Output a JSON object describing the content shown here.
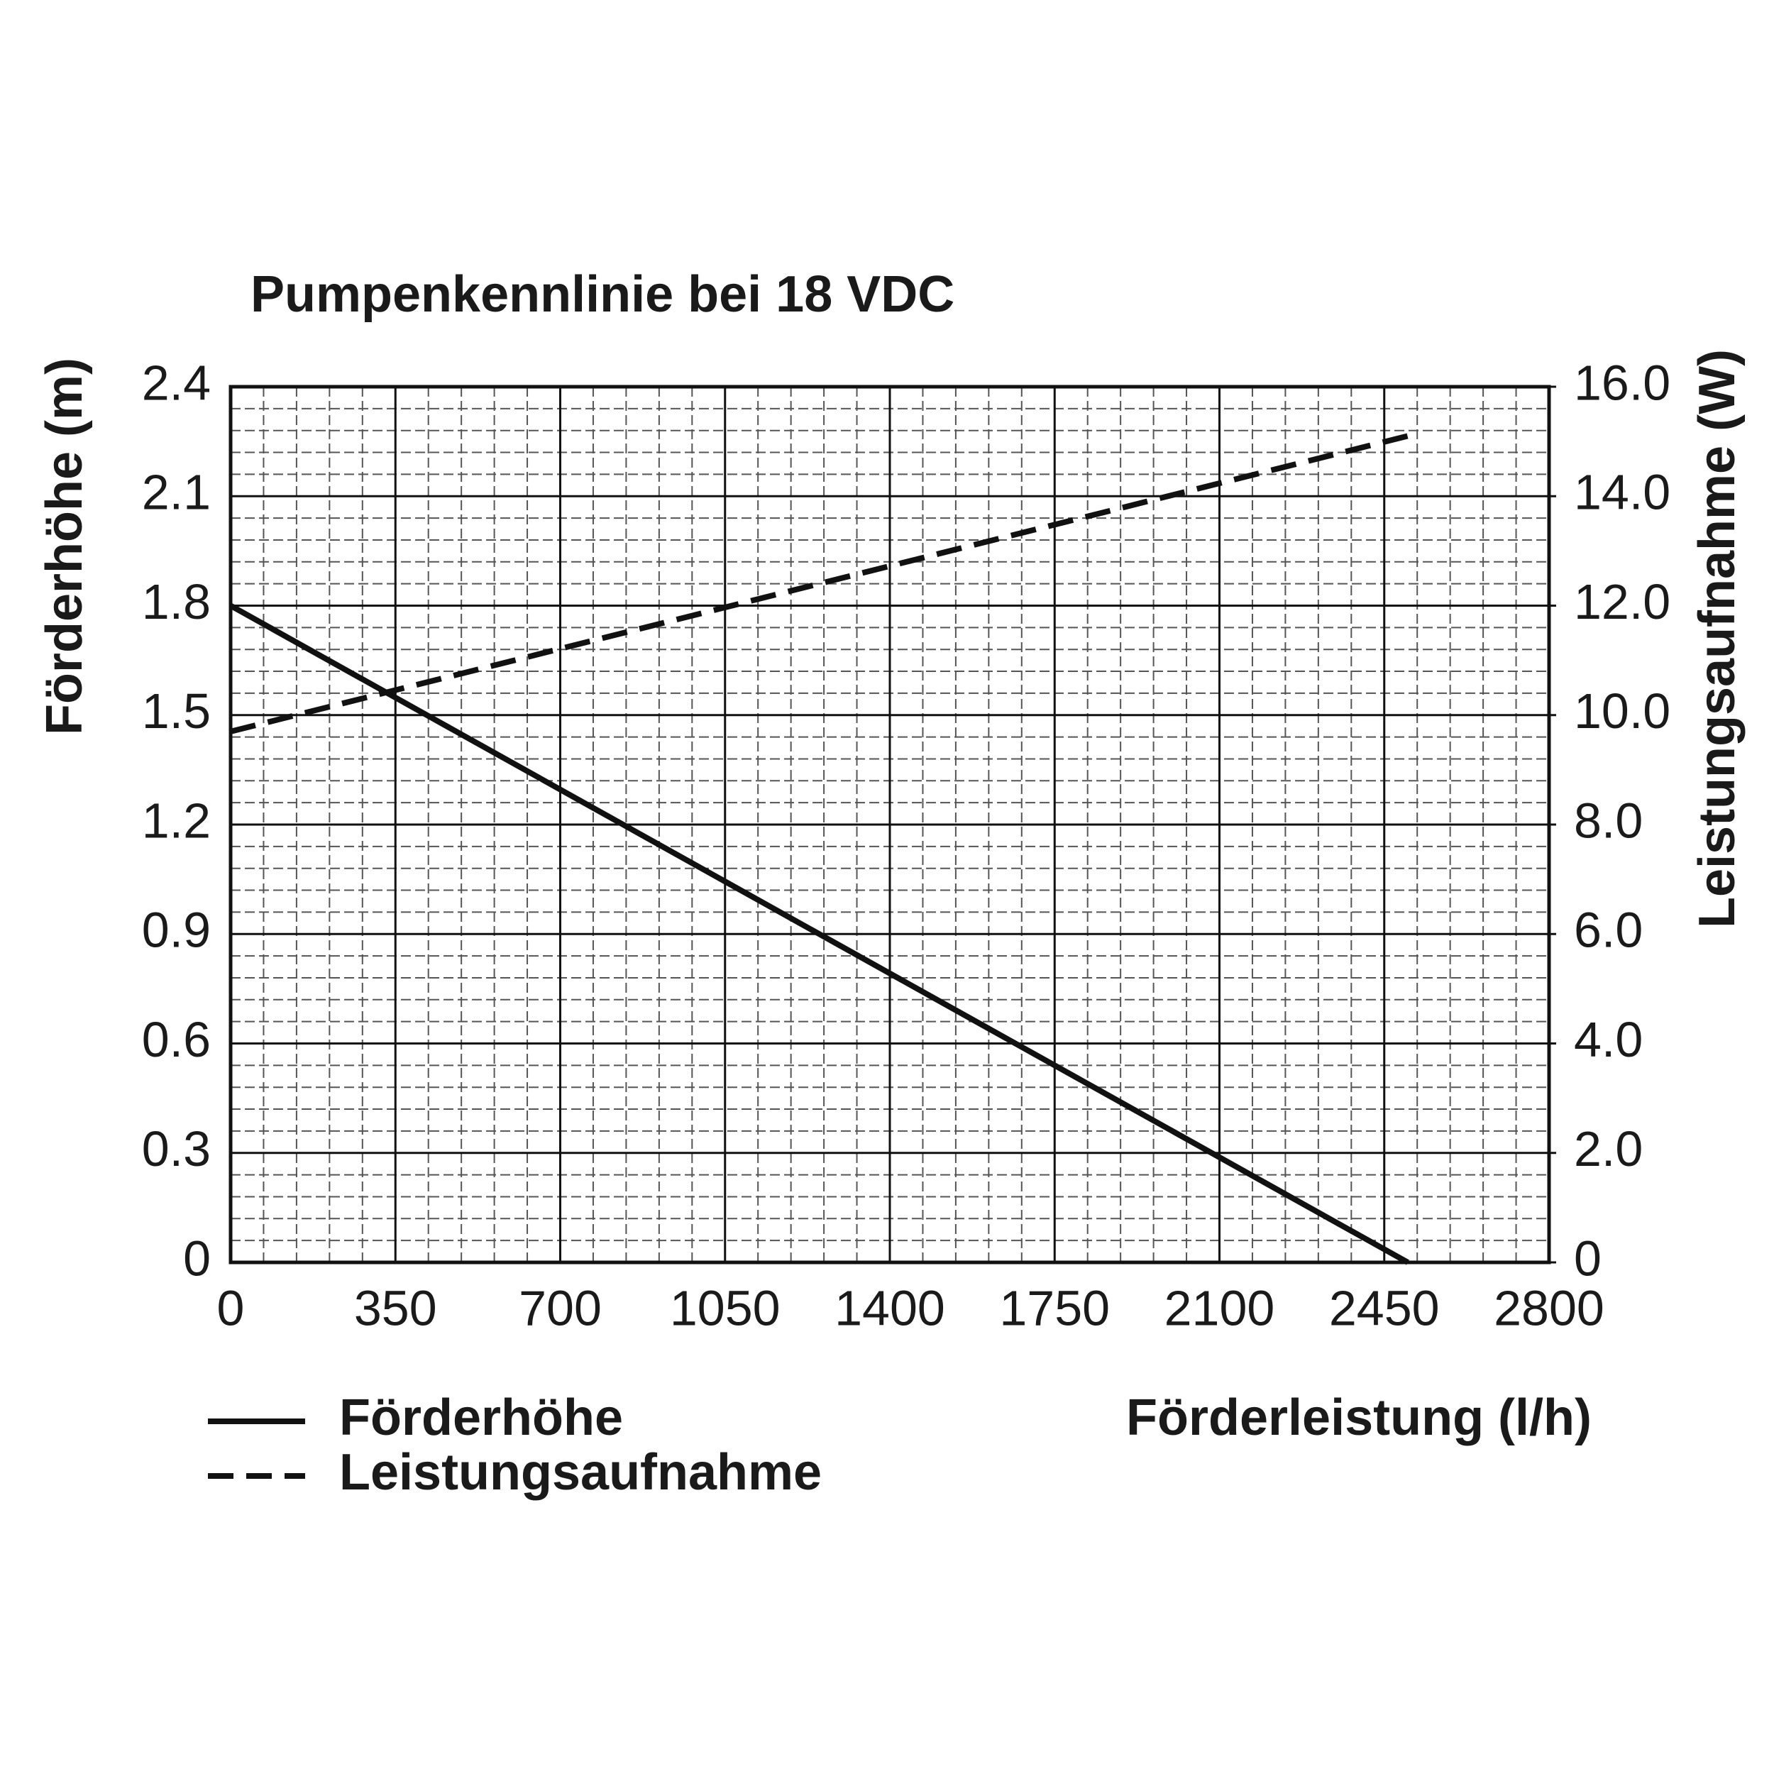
{
  "chart_data": {
    "type": "line",
    "title": "Pumpenkennlinie bei 18 VDC",
    "x_label": "Förderleistung (l/h)",
    "y_label": "Förderhöhe (m)",
    "y2_label": "Leistungsaufnahme (W)",
    "x": [
      0,
      2500
    ],
    "series": [
      {
        "name": "Förderhöhe",
        "color": "#111111",
        "line_style": "solid",
        "values": [
          1.8,
          0
        ]
      },
      {
        "name": "Leistungsaufnahme",
        "color": "#111111",
        "line_style": "dashed",
        "axis": "y2",
        "values": [
          9.7,
          15.1
        ]
      }
    ],
    "xlim": [
      0,
      2800
    ],
    "xticks": [
      0,
      350,
      700,
      1050,
      1400,
      1750,
      2100,
      2450,
      2800
    ],
    "ylim": [
      0,
      2.4
    ],
    "yticks": [
      0,
      0.3,
      0.6,
      0.9,
      1.2,
      1.5,
      1.8,
      2.1,
      2.4
    ],
    "y2lim": [
      0,
      16
    ],
    "y2ticks": [
      0,
      {
        "value": 2,
        "label": "2.0"
      },
      {
        "value": 4,
        "label": "4.0"
      },
      {
        "value": 6,
        "label": "6.0"
      },
      {
        "value": 8,
        "label": "8.0"
      },
      {
        "value": 10,
        "label": "10.0"
      },
      {
        "value": 12,
        "label": "12.0"
      },
      {
        "value": 14,
        "label": "14.0"
      },
      {
        "value": 16,
        "label": "16.0"
      }
    ],
    "grid": true,
    "legend": "bottom-left"
  }
}
